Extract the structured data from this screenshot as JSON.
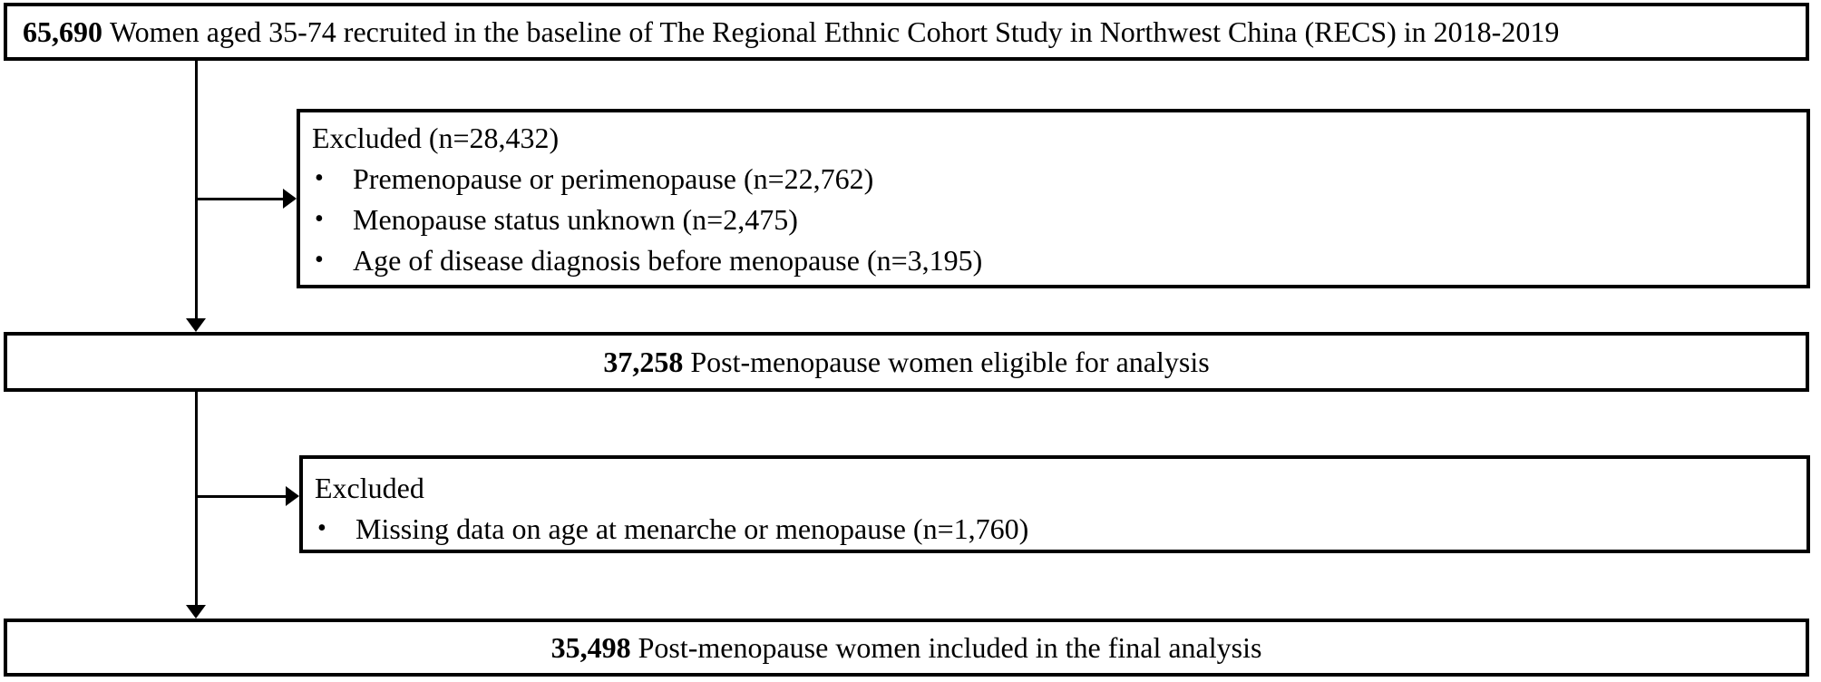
{
  "flow": {
    "recruited": {
      "count": "65,690",
      "text": "Women aged 35-74 recruited in the baseline of The Regional Ethnic Cohort Study in Northwest China (RECS) in 2018-2019"
    },
    "excluded_1": {
      "title": "Excluded (n=28,432)",
      "bullet": "•",
      "items": [
        "Premenopause or perimenopause (n=22,762)",
        "Menopause status unknown (n=2,475)",
        "Age of disease diagnosis before menopause (n=3,195)"
      ]
    },
    "eligible": {
      "count": "37,258",
      "text": "Post-menopause women eligible for analysis"
    },
    "excluded_2": {
      "title": "Excluded",
      "bullet": "•",
      "items": [
        "Missing data on age at menarche or menopause (n=1,760)"
      ]
    },
    "final": {
      "count": "35,498",
      "text": "Post-menopause women included in the final analysis"
    },
    "colors": {
      "border": "#000000",
      "background": "#ffffff",
      "text": "#000000"
    }
  }
}
